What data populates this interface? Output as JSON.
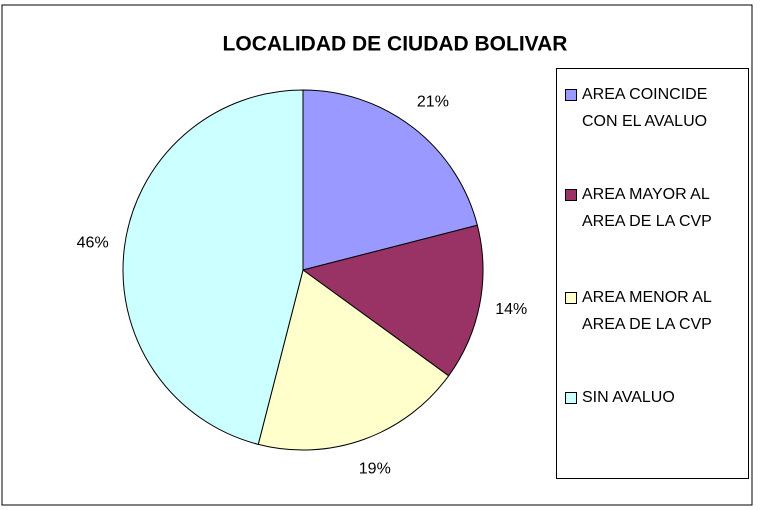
{
  "chart_data": {
    "type": "pie",
    "title": "LOCALIDAD DE CIUDAD BOLIVAR",
    "categories": [
      "AREA COINCIDE CON EL AVALUO",
      "AREA MAYOR AL AREA DE LA CVP",
      "AREA MENOR AL AREA DE LA CVP",
      "SIN AVALUO"
    ],
    "values": [
      21,
      14,
      19,
      46
    ],
    "value_labels": [
      "21%",
      "14%",
      "19%",
      "46%"
    ],
    "colors": [
      "#9999ff",
      "#993366",
      "#ffffcc",
      "#ccffff"
    ],
    "legend": "right"
  }
}
